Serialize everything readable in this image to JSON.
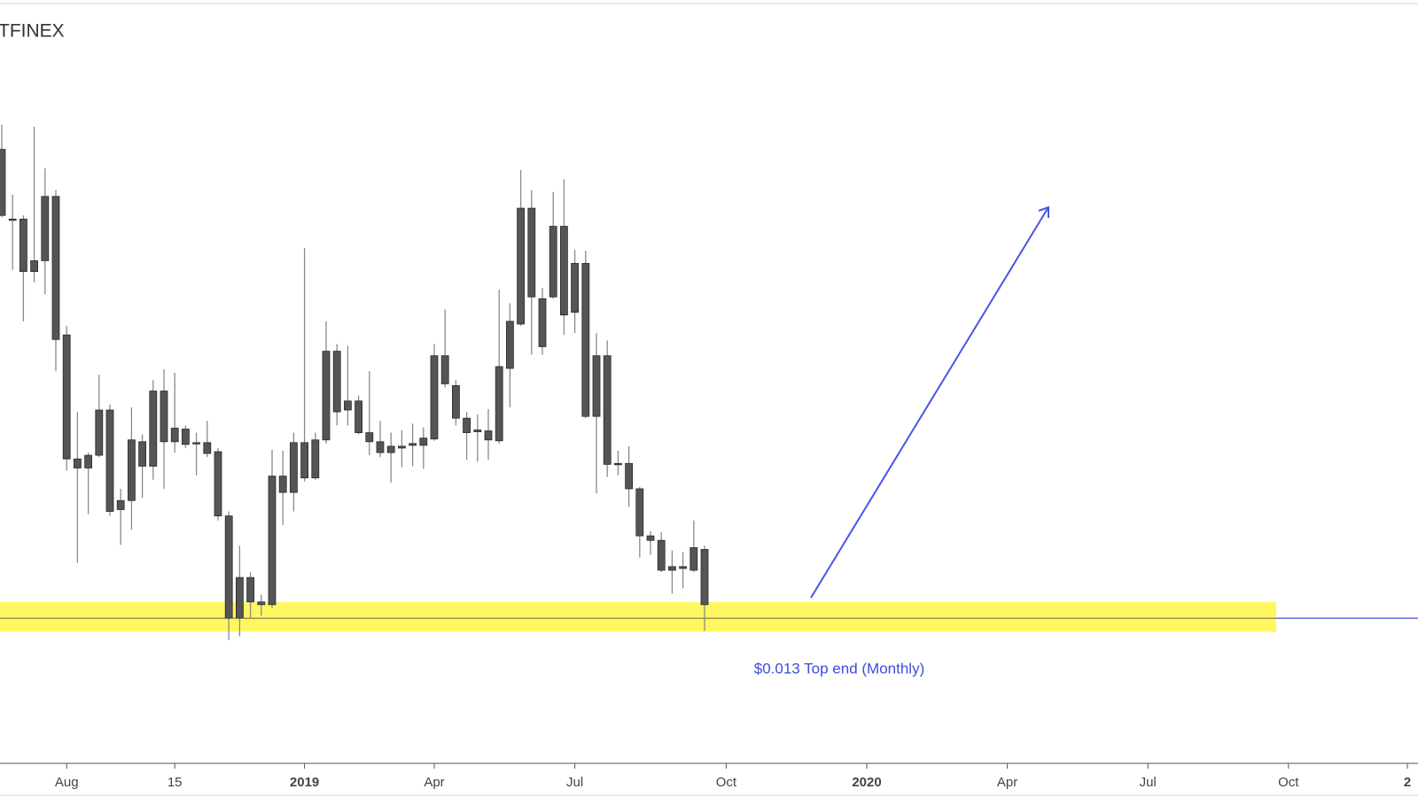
{
  "chart_data": {
    "type": "candlestick",
    "title": "TFINEX",
    "categories": [
      null,
      null,
      null,
      null,
      null,
      null,
      "Aug",
      null,
      null,
      null,
      null,
      null,
      null,
      null,
      null,
      null,
      "15",
      null,
      null,
      null,
      null,
      null,
      null,
      null,
      null,
      null,
      null,
      null,
      "2019",
      null,
      null,
      null,
      null,
      null,
      null,
      null,
      null,
      null,
      null,
      null,
      "Apr",
      null,
      null,
      null,
      null,
      null,
      null,
      null,
      null,
      null,
      null,
      null,
      null,
      "Jul",
      null,
      null,
      null,
      null,
      null,
      null,
      null,
      null,
      null,
      null,
      null,
      null,
      null,
      "Oct",
      null,
      null,
      null,
      null,
      null,
      null,
      null,
      null,
      null,
      null,
      null,
      null,
      "2020",
      null,
      null,
      null,
      null,
      null,
      null,
      null,
      null,
      null,
      null,
      null,
      null,
      "Apr",
      null,
      null,
      null,
      null,
      null,
      null,
      null,
      null,
      null,
      null,
      null,
      null,
      "Jul",
      null,
      null,
      null,
      null,
      null,
      null,
      null,
      null,
      null,
      null,
      null,
      null,
      "Oct",
      null,
      null,
      null,
      null,
      null,
      null,
      null,
      null,
      null,
      null,
      "2"
    ],
    "open": [
      0.0648,
      0.0571,
      0.0571,
      0.0513,
      0.0525,
      0.0596,
      0.0443,
      0.0306,
      0.0296,
      0.031,
      0.036,
      0.025,
      0.026,
      0.0325,
      0.0298,
      0.0381,
      0.0325,
      0.0339,
      0.0324,
      0.0324,
      0.0314,
      0.0243,
      0.013,
      0.0175,
      0.0148,
      0.0145,
      0.0287,
      0.0269,
      0.0324,
      0.0285,
      0.0327,
      0.0425,
      0.036,
      0.037,
      0.0335,
      0.0325,
      0.0313,
      0.032,
      0.0321,
      0.0321,
      0.0328,
      0.042,
      0.0387,
      0.0351,
      0.0336,
      0.0337,
      0.0326,
      0.0406,
      0.0455,
      0.0583,
      0.0483,
      0.0485,
      0.0563,
      0.0468,
      0.0522,
      0.0353,
      0.042,
      0.03,
      0.0301,
      0.0273,
      0.0221,
      0.0216,
      0.0183,
      0.0187,
      0.0183,
      0.0206,
      null,
      null,
      null,
      null,
      null,
      null,
      null,
      null,
      null,
      null,
      null,
      null,
      null,
      null,
      null,
      null,
      null,
      null,
      null,
      null,
      null,
      null,
      null,
      null,
      null,
      null,
      null,
      null,
      null,
      null,
      null,
      null,
      null,
      null,
      null,
      null,
      null,
      null,
      null,
      null,
      null,
      null,
      null,
      null,
      null,
      null,
      null,
      null,
      null,
      null,
      null,
      null,
      null,
      null,
      null,
      null,
      null,
      null,
      null,
      null,
      null,
      null,
      null,
      null,
      null
    ],
    "high": [
      0.0675,
      0.0598,
      0.0575,
      0.0673,
      0.0627,
      0.0603,
      0.0453,
      0.0358,
      0.0313,
      0.0399,
      0.0366,
      0.0273,
      0.0363,
      0.0333,
      0.0393,
      0.0405,
      0.0401,
      0.0343,
      0.0335,
      0.0348,
      0.0318,
      0.0248,
      0.021,
      0.0181,
      0.0156,
      0.0316,
      0.0315,
      0.0335,
      0.0539,
      0.0335,
      0.0458,
      0.0433,
      0.0431,
      0.0376,
      0.0403,
      0.0348,
      0.0335,
      0.0338,
      0.0345,
      0.0341,
      0.0433,
      0.0471,
      0.0393,
      0.0358,
      0.0355,
      0.0361,
      0.0493,
      0.0478,
      0.0625,
      0.0603,
      0.0495,
      0.0601,
      0.0615,
      0.0537,
      0.0536,
      0.0445,
      0.0437,
      0.0315,
      0.032,
      0.0275,
      0.0226,
      0.0225,
      0.0205,
      0.0203,
      0.0238,
      0.021,
      null,
      null,
      null,
      null,
      null,
      null,
      null,
      null,
      null,
      null,
      null,
      null,
      null,
      null,
      null,
      null,
      null,
      null,
      null,
      null,
      null,
      null,
      null,
      null,
      null,
      null,
      null,
      null,
      null,
      null,
      null,
      null,
      null,
      null,
      null,
      null,
      null,
      null,
      null,
      null,
      null,
      null,
      null,
      null,
      null,
      null,
      null,
      null,
      null,
      null,
      null,
      null,
      null,
      null,
      null,
      null,
      null,
      null,
      null,
      null,
      null,
      null,
      null,
      null,
      null
    ],
    "low": [
      0.0573,
      0.0515,
      0.0458,
      0.0501,
      0.0488,
      0.0403,
      0.0293,
      0.0191,
      0.0245,
      0.0308,
      0.0243,
      0.0211,
      0.0228,
      0.0263,
      0.0283,
      0.0273,
      0.0313,
      0.0318,
      0.0288,
      0.0308,
      0.0238,
      0.0106,
      0.011,
      0.013,
      0.0133,
      0.0141,
      0.0233,
      0.0248,
      0.0281,
      0.0283,
      0.0323,
      0.0343,
      0.0343,
      0.0333,
      0.031,
      0.0308,
      0.028,
      0.0297,
      0.0298,
      0.0295,
      0.0326,
      0.0385,
      0.0343,
      0.0305,
      0.0303,
      0.0305,
      0.0323,
      0.0363,
      0.0453,
      0.0421,
      0.0421,
      0.0483,
      0.0443,
      0.0445,
      0.0351,
      0.0268,
      0.0286,
      0.0288,
      0.0253,
      0.0197,
      0.02,
      0.0181,
      0.0157,
      0.0163,
      0.0181,
      0.0116,
      null,
      null,
      null,
      null,
      null,
      null,
      null,
      null,
      null,
      null,
      null,
      null,
      null,
      null,
      null,
      null,
      null,
      null,
      null,
      null,
      null,
      null,
      null,
      null,
      null,
      null,
      null,
      null,
      null,
      null,
      null,
      null,
      null,
      null,
      null,
      null,
      null,
      null,
      null,
      null,
      null,
      null,
      null,
      null,
      null,
      null,
      null,
      null,
      null,
      null,
      null,
      null,
      null,
      null,
      null,
      null,
      null,
      null,
      null,
      null,
      null,
      null,
      null,
      null,
      null
    ],
    "close": [
      0.0575,
      0.057,
      0.0513,
      0.0525,
      0.0596,
      0.0438,
      0.0306,
      0.0296,
      0.031,
      0.036,
      0.0248,
      0.026,
      0.0327,
      0.0298,
      0.0381,
      0.0325,
      0.034,
      0.0322,
      0.0323,
      0.0312,
      0.0243,
      0.013,
      0.0175,
      0.0148,
      0.0145,
      0.0287,
      0.0269,
      0.0324,
      0.0285,
      0.0327,
      0.0425,
      0.0358,
      0.037,
      0.0335,
      0.0325,
      0.0313,
      0.032,
      0.0318,
      0.0323,
      0.0329,
      0.042,
      0.0389,
      0.0351,
      0.0335,
      0.0338,
      0.0327,
      0.0408,
      0.0458,
      0.0583,
      0.0485,
      0.043,
      0.0563,
      0.0465,
      0.0522,
      0.0353,
      0.042,
      0.03,
      0.0301,
      0.0273,
      0.0221,
      0.0216,
      0.0183,
      0.0187,
      0.0185,
      0.0208,
      0.0145,
      null,
      null,
      null,
      null,
      null,
      null,
      null,
      null,
      null,
      null,
      null,
      null,
      null,
      null,
      null,
      null,
      null,
      null,
      null,
      null,
      null,
      null,
      null,
      null,
      null,
      null,
      null,
      null,
      null,
      null,
      null,
      null,
      null,
      null,
      null,
      null,
      null,
      null,
      null,
      null,
      null,
      null,
      null,
      null,
      null,
      null,
      null,
      null,
      null,
      null,
      null,
      null,
      null,
      null,
      null,
      null,
      null,
      null,
      null,
      null,
      null,
      null,
      null,
      null,
      null
    ],
    "color": "#555555",
    "wick_color": "#8a8a8a",
    "ylim": [
      0,
      0.0813
    ],
    "zone": {
      "low": 0.0115,
      "high": 0.0148,
      "color": "#fff650"
    },
    "level": {
      "value": 0.013,
      "label": "$0.013 Top end (Monthly)",
      "color": "#3b4bdc"
    }
  }
}
